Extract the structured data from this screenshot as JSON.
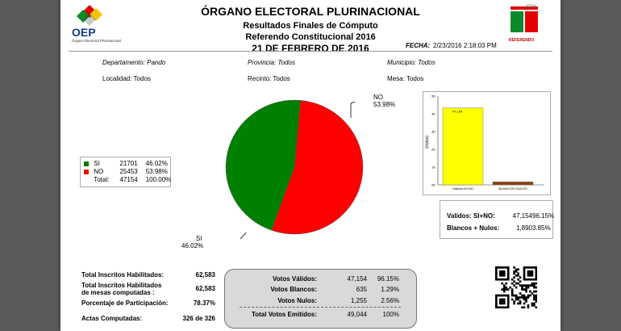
{
  "header": {
    "title": "ÓRGANO ELECTORAL PLURINACIONAL",
    "subtitle1": "Resultados Finales de Cómputo",
    "subtitle2": "Referendo Constitucional 2016",
    "date_title": "21 DE FEBRERO DE 2016",
    "fecha_label": "FECHA:",
    "fecha_value": "2/23/2016 2:18:03 PM",
    "logo_left_text": "OEP",
    "logo_left_caption": "Órgano Electoral Plurinacional",
    "logo_right_year": "2016",
    "logo_right_caption": "REFERENDO"
  },
  "filters": {
    "departamento": "Departamento: Pando",
    "provincia": "Provincia: Todos",
    "municipio": "Municipio: Todos",
    "localidad": "Localidad: Todos",
    "recinto": "Recinto: Todos",
    "mesa": "Mesa: Todos"
  },
  "legend": {
    "rows": [
      {
        "label": "SI",
        "votes": "21701",
        "pct": "46.02%",
        "color": "#008000"
      },
      {
        "label": "NO",
        "votes": "25453",
        "pct": "53.98%",
        "color": "#ff0000"
      },
      {
        "label": "Total:",
        "votes": "47154",
        "pct": "100.00%"
      }
    ]
  },
  "pie_labels": {
    "no_name": "NO",
    "no_pct": "53.98%",
    "si_name": "SI",
    "si_pct": "46.02%"
  },
  "chart_data": [
    {
      "type": "pie",
      "categories": [
        "SI",
        "NO"
      ],
      "values": [
        46.02,
        53.98
      ],
      "colors": [
        "#008000",
        "#ff0000"
      ]
    },
    {
      "type": "bar",
      "categories": [
        "Validos:SI+NO",
        "BLANCOS+NULOS"
      ],
      "values": [
        47154,
        1890
      ],
      "data_labels": [
        "47,154",
        ""
      ],
      "colors": [
        "#ffff00",
        "#8b4513"
      ],
      "ylabel": "(Votos)",
      "yticks": [
        "0K",
        "1K",
        "2K",
        "3K",
        "4K",
        "5K"
      ],
      "ylim": [
        0,
        50000
      ]
    }
  ],
  "summary_right": [
    {
      "label": "Validos: SI+NO:",
      "votes": "47,154",
      "pct": "96.15%"
    },
    {
      "label": "Blancos + Nulos:",
      "votes": "1,890",
      "pct": "3.85%"
    }
  ],
  "stats_left": [
    {
      "label": "Total Inscritos Habilitados:",
      "value": "62,583"
    },
    {
      "label": "Total Inscritos Habilitados",
      "label2": "de mesas computadas :",
      "value": "62,583"
    },
    {
      "label": "Porcentaje de Participación:",
      "value": "78.37%"
    },
    {
      "label": "Actas Computadas:",
      "value": "326 de 326"
    }
  ],
  "votes_table": [
    {
      "label": "Votos Válidos:",
      "votes": "47,154",
      "pct": "96.15%"
    },
    {
      "label": "Votos Blancos:",
      "votes": "635",
      "pct": "1.29%"
    },
    {
      "label": "Votos Nulos:",
      "votes": "1,255",
      "pct": "2.56%"
    },
    {
      "label": "Total Votos Emitidos:",
      "votes": "49,044",
      "pct": "100%"
    }
  ]
}
